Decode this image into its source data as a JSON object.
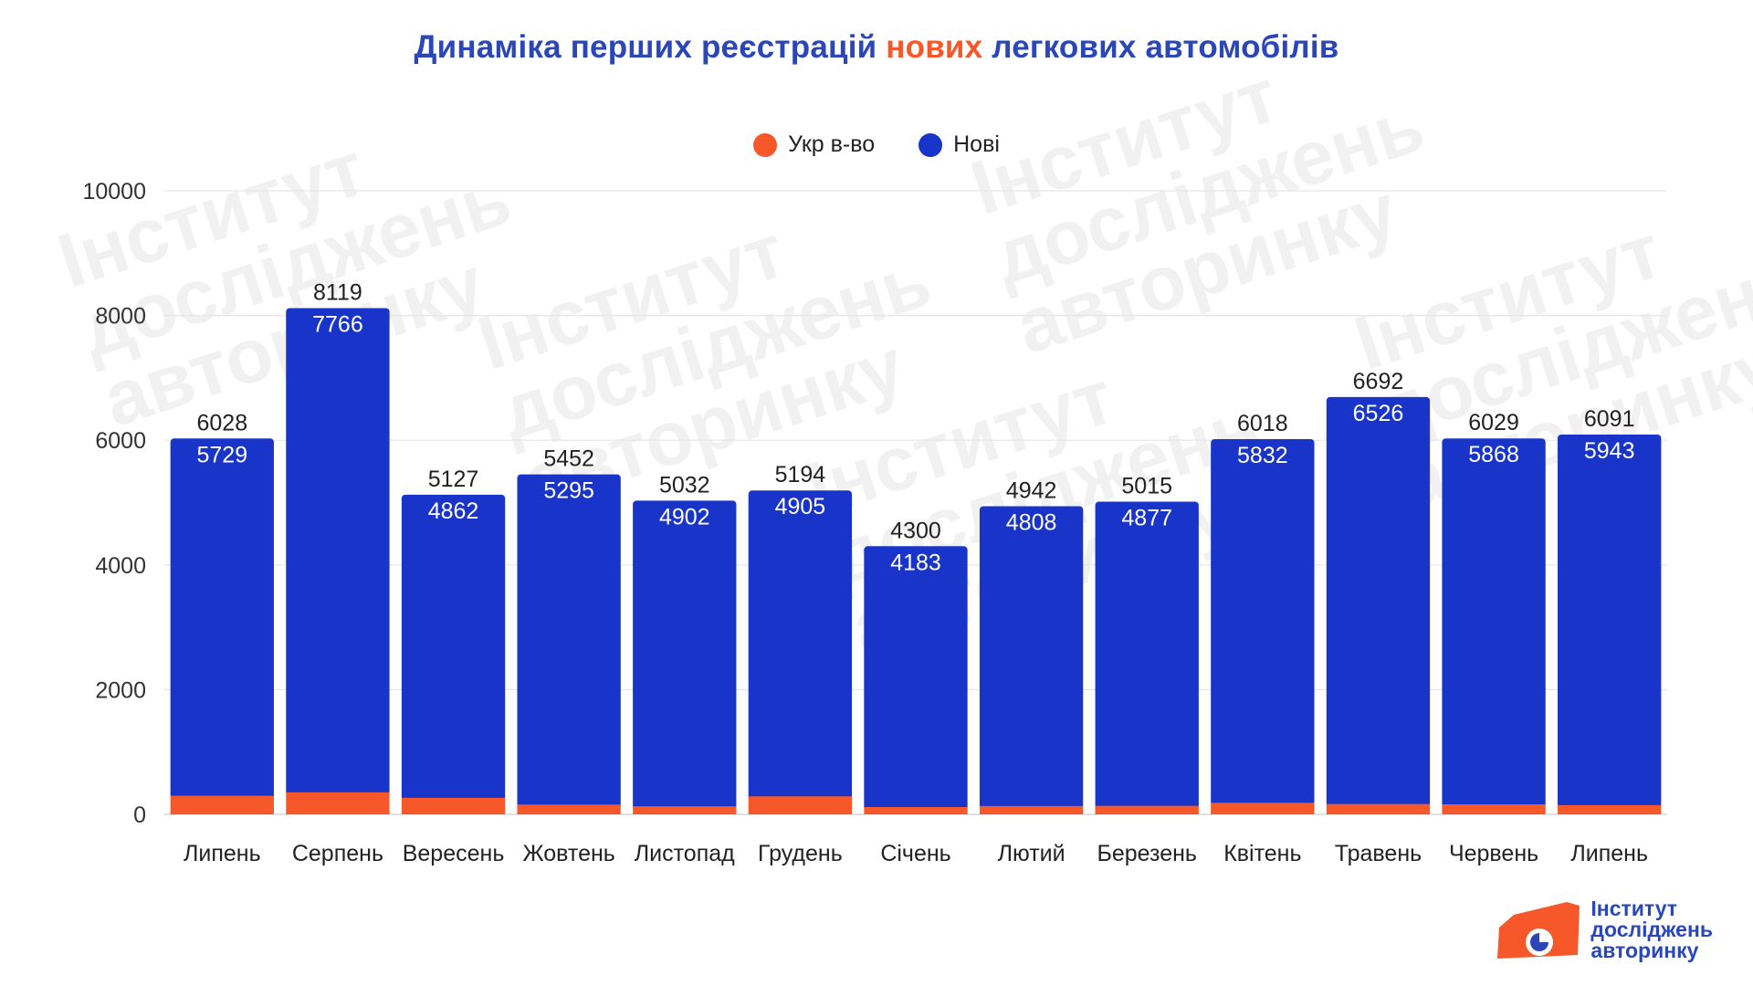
{
  "title": {
    "part1": "Динаміка перших реєстрацій",
    "accent": "нових",
    "part2": "легкових автомобілів"
  },
  "colors": {
    "ukr": "#f7582a",
    "new": "#1934c8",
    "title": "#2b47b7",
    "accent": "#f7582a"
  },
  "legend": [
    {
      "label": "Укр в-во",
      "color": "#f7582a"
    },
    {
      "label": "Нові",
      "color": "#1934c8"
    }
  ],
  "watermark_text": [
    "Інститут",
    "досліджень",
    "авторинку"
  ],
  "logo": {
    "lines": [
      "Інститут",
      "досліджень",
      "авторинку"
    ]
  },
  "chart_data": {
    "type": "bar",
    "stacked": true,
    "categories": [
      "Липень",
      "Серпень",
      "Вересень",
      "Жовтень",
      "Листопад",
      "Грудень",
      "Січень",
      "Лютий",
      "Березень",
      "Квітень",
      "Травень",
      "Червень",
      "Липень"
    ],
    "series": [
      {
        "name": "Укр в-во",
        "color": "#f7582a",
        "values": [
          299,
          353,
          265,
          157,
          130,
          289,
          117,
          134,
          138,
          186,
          166,
          161,
          148
        ]
      },
      {
        "name": "Нові",
        "color": "#1934c8",
        "values": [
          5729,
          7766,
          4862,
          5295,
          4902,
          4905,
          4183,
          4808,
          4877,
          5832,
          6526,
          5868,
          5943
        ]
      }
    ],
    "totals": [
      6028,
      8119,
      5127,
      5452,
      5032,
      5194,
      4300,
      4942,
      5015,
      6018,
      6692,
      6029,
      6091
    ],
    "ylim": [
      0,
      10000
    ],
    "yticks": [
      0,
      2000,
      4000,
      6000,
      8000,
      10000
    ],
    "grid": true,
    "legend_position": "top-center"
  }
}
